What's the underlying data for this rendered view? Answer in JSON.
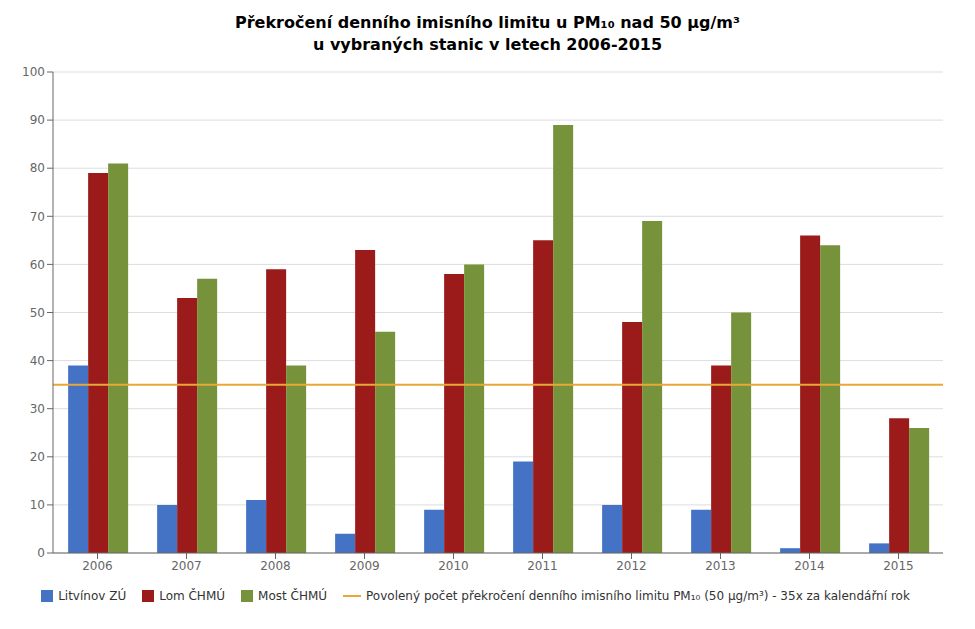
{
  "chart_data": {
    "type": "bar",
    "title": "Překročení denního imisního limitu u PM₁₀ nad 50 μg/m³",
    "subtitle": "u vybraných stanic v letech 2006-2015",
    "categories": [
      "2006",
      "2007",
      "2008",
      "2009",
      "2010",
      "2011",
      "2012",
      "2013",
      "2014",
      "2015"
    ],
    "series": [
      {
        "name": "Litvínov ZÚ",
        "color": "#4472C4",
        "values": [
          39,
          10,
          11,
          4,
          9,
          19,
          10,
          9,
          1,
          2
        ]
      },
      {
        "name": "Lom ČHMÚ",
        "color": "#9B1B1B",
        "values": [
          79,
          53,
          59,
          63,
          58,
          65,
          48,
          39,
          66,
          28
        ]
      },
      {
        "name": "Most ČHMÚ",
        "color": "#76933C",
        "values": [
          81,
          57,
          39,
          46,
          60,
          89,
          69,
          50,
          64,
          26
        ]
      }
    ],
    "reference_line": {
      "name": "Povolený počet překročení denního imisního limitu PM₁₀ (50 μg/m³) - 35x za kalendářní rok",
      "value": 35,
      "color": "#E8A838"
    },
    "ylim": [
      0,
      100
    ],
    "yticks": [
      0,
      10,
      20,
      30,
      40,
      50,
      60,
      70,
      80,
      90,
      100
    ],
    "grid": true,
    "legend": "bottom"
  }
}
